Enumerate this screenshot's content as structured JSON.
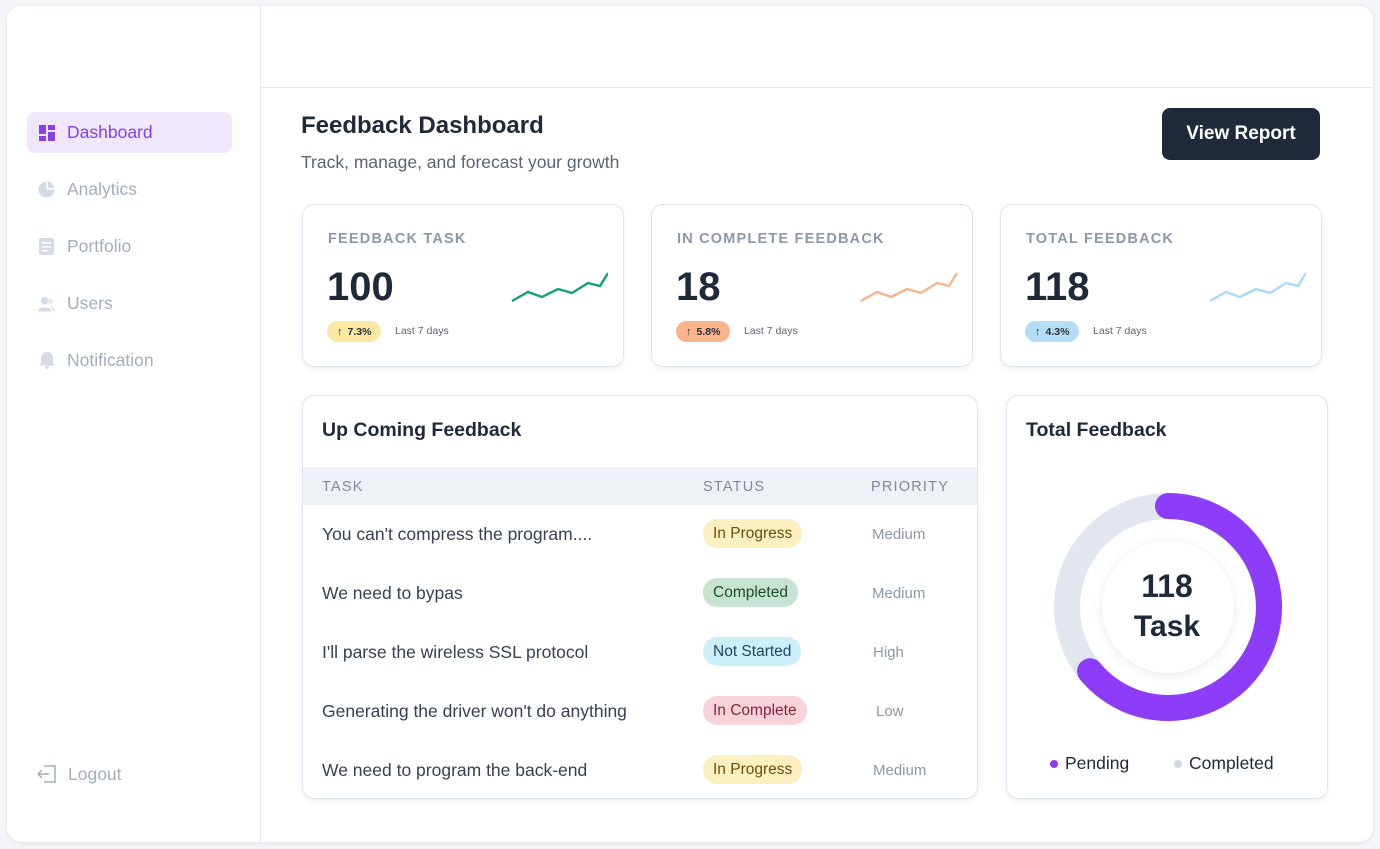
{
  "sidebar": {
    "items": [
      {
        "label": "Dashboard",
        "icon": "dashboard-icon",
        "active": true
      },
      {
        "label": "Analytics",
        "icon": "pie-chart-icon",
        "active": false
      },
      {
        "label": "Portfolio",
        "icon": "document-icon",
        "active": false
      },
      {
        "label": "Users",
        "icon": "users-icon",
        "active": false
      },
      {
        "label": "Notification",
        "icon": "bell-icon",
        "active": false
      }
    ],
    "logout_label": "Logout"
  },
  "header": {
    "title": "Feedback Dashboard",
    "subtitle": "Track, manage, and forecast your growth",
    "report_button": "View Report"
  },
  "stats": [
    {
      "label": "FEEDBACK TASK",
      "value": "100",
      "change": "7.3%",
      "period": "Last 7 days",
      "color": "#12a36a",
      "badge_color": "#fbe8a3"
    },
    {
      "label": "IN COMPLETE FEEDBACK",
      "value": "18",
      "change": "5.8%",
      "period": "Last 7 days",
      "color": "#f6b58a",
      "badge_color": "#f9b48c"
    },
    {
      "label": "TOTAL FEEDBACK",
      "value": "118",
      "change": "4.3%",
      "period": "Last 7 days",
      "color": "#a8d9f5",
      "badge_color": "#b5ddf7"
    }
  ],
  "upcoming": {
    "title": "Up Coming Feedback",
    "columns": [
      "TASK",
      "STATUS",
      "PRIORITY"
    ],
    "rows": [
      {
        "task": "You can't compress the program....",
        "status": "In Progress",
        "priority": "Medium"
      },
      {
        "task": "We need to bypas",
        "status": "Completed",
        "priority": "Medium"
      },
      {
        "task": "I'll parse the wireless SSL protocol",
        "status": "Not Started",
        "priority": "High"
      },
      {
        "task": "Generating the driver won't do anything",
        "status": "In Complete",
        "priority": "Low"
      },
      {
        "task": "We need to program the back-end",
        "status": "In Progress",
        "priority": "Medium"
      }
    ]
  },
  "status_colors": {
    "In Progress": {
      "bg": "#fcefc0",
      "fg": "#6b4e0a"
    },
    "Completed": {
      "bg": "#c6e4d1",
      "fg": "#1d4a31"
    },
    "Not Started": {
      "bg": "#cdeefb",
      "fg": "#1e4660"
    },
    "In Complete": {
      "bg": "#f8d3da",
      "fg": "#8a2438"
    }
  },
  "total_feedback": {
    "title": "Total Feedback",
    "center_value": "118",
    "center_label": "Task",
    "pending_fraction": 0.64,
    "legend": [
      {
        "label": "Pending",
        "color": "#8d3cf7"
      },
      {
        "label": "Completed",
        "color": "#d6dde7"
      }
    ]
  }
}
